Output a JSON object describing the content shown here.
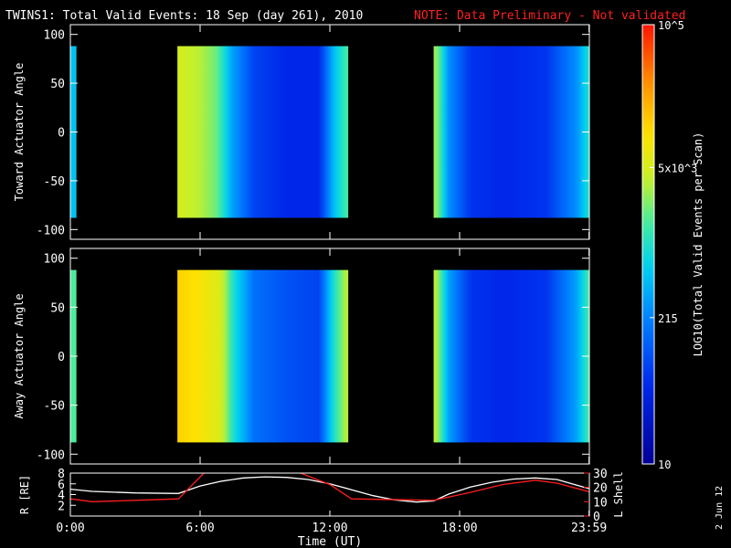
{
  "header": {
    "title": "TWINS1: Total Valid Events: 18 Sep (day 261), 2010",
    "note": "NOTE: Data Preliminary - Not validated"
  },
  "side_date": "2 Jun 12",
  "colors": {
    "note": "#ff2020",
    "lshell": "#ff1e1e",
    "r_trace": "#ffffff",
    "frame": "#ffffff"
  },
  "colorbar": {
    "label": "LOG10(Total Valid Events per Scan)",
    "scale": "log",
    "range": [
      10,
      100000
    ],
    "ticks": [
      "10^5",
      "5x10^3",
      "215",
      "10"
    ],
    "tick_values": [
      100000,
      5000,
      215,
      10
    ]
  },
  "chart_data": [
    {
      "type": "heatmap",
      "panel": "toward",
      "ylabel": "Toward Actuator Angle",
      "y_ticks": [
        -100,
        -50,
        0,
        50,
        100
      ],
      "ylim": [
        -110,
        110
      ],
      "xlim_hours": [
        0,
        24
      ],
      "x_ticks": [
        "0:00",
        "6:00",
        "12:00",
        "18:00",
        "23:59"
      ],
      "angle_range": [
        -88,
        88
      ],
      "data_intervals_hours": [
        [
          0,
          0.28
        ],
        [
          4.95,
          12.85
        ],
        [
          16.8,
          24
        ]
      ],
      "log_counts_profile": [
        {
          "t": 0.1,
          "v": 2.7
        },
        {
          "t": 5.0,
          "v": 3.7
        },
        {
          "t": 5.5,
          "v": 3.6
        },
        {
          "t": 6.0,
          "v": 3.55
        },
        {
          "t": 6.8,
          "v": 3.3
        },
        {
          "t": 7.5,
          "v": 2.5
        },
        {
          "t": 8.5,
          "v": 1.9
        },
        {
          "t": 10,
          "v": 1.7
        },
        {
          "t": 11.5,
          "v": 1.7
        },
        {
          "t": 12.2,
          "v": 2.7
        },
        {
          "t": 12.8,
          "v": 3.2
        },
        {
          "t": 16.9,
          "v": 3.5
        },
        {
          "t": 17.5,
          "v": 2.4
        },
        {
          "t": 18.5,
          "v": 1.8
        },
        {
          "t": 20,
          "v": 1.7
        },
        {
          "t": 22,
          "v": 1.8
        },
        {
          "t": 23.4,
          "v": 2.4
        },
        {
          "t": 24,
          "v": 3.0
        }
      ]
    },
    {
      "type": "heatmap",
      "panel": "away",
      "ylabel": "Away Actuator Angle",
      "y_ticks": [
        -100,
        -50,
        0,
        50,
        100
      ],
      "ylim": [
        -110,
        110
      ],
      "xlim_hours": [
        0,
        24
      ],
      "x_ticks": [
        "0:00",
        "6:00",
        "12:00",
        "18:00",
        "23:59"
      ],
      "angle_range": [
        -88,
        88
      ],
      "data_intervals_hours": [
        [
          0,
          0.28
        ],
        [
          4.95,
          12.85
        ],
        [
          16.8,
          24
        ]
      ],
      "log_counts_profile": [
        {
          "t": 0.1,
          "v": 3.2
        },
        {
          "t": 5.0,
          "v": 4.1
        },
        {
          "t": 6.0,
          "v": 3.95
        },
        {
          "t": 7.0,
          "v": 3.7
        },
        {
          "t": 7.6,
          "v": 2.9
        },
        {
          "t": 8.5,
          "v": 2.2
        },
        {
          "t": 10,
          "v": 2.0
        },
        {
          "t": 11.5,
          "v": 1.9
        },
        {
          "t": 12.2,
          "v": 3.0
        },
        {
          "t": 12.8,
          "v": 3.6
        },
        {
          "t": 16.9,
          "v": 3.6
        },
        {
          "t": 17.5,
          "v": 2.5
        },
        {
          "t": 18.5,
          "v": 1.8
        },
        {
          "t": 20,
          "v": 1.7
        },
        {
          "t": 22,
          "v": 1.8
        },
        {
          "t": 23.4,
          "v": 2.5
        },
        {
          "t": 24,
          "v": 3.2
        }
      ]
    },
    {
      "type": "line",
      "panel": "orbit",
      "ylabel": "R [RE]",
      "ylabel2": "L Shell",
      "ylim": [
        0,
        8
      ],
      "y_ticks": [
        2,
        4,
        6,
        8
      ],
      "ylim2": [
        0,
        30
      ],
      "y2_ticks": [
        0,
        10,
        20,
        30
      ],
      "xlabel": "Time (UT)",
      "x_ticks": [
        "0:00",
        "6:00",
        "12:00",
        "18:00",
        "23:59"
      ],
      "series": [
        {
          "name": "R [RE]",
          "x": [
            0,
            1,
            3,
            5,
            6,
            7,
            8,
            9,
            10,
            11,
            12,
            13,
            14,
            15,
            16,
            16.8,
            17.5,
            18.5,
            19.5,
            20.5,
            21.5,
            22.5,
            23.2,
            23.99
          ],
          "y": [
            5.0,
            4.6,
            4.3,
            4.2,
            5.6,
            6.5,
            7.1,
            7.3,
            7.2,
            6.8,
            6.0,
            4.9,
            3.8,
            3.0,
            2.6,
            2.8,
            4.1,
            5.4,
            6.3,
            6.9,
            7.1,
            6.8,
            6.0,
            5.1
          ]
        },
        {
          "name": "L Shell",
          "x": [
            0,
            1,
            3,
            5,
            6.5,
            9.8,
            12,
            13,
            16.8,
            18.5,
            20,
            21.5,
            22.5,
            23.99
          ],
          "y": [
            12,
            10,
            11,
            12,
            35,
            35,
            22,
            12,
            11,
            16.5,
            22,
            25,
            23,
            17
          ]
        }
      ]
    }
  ]
}
